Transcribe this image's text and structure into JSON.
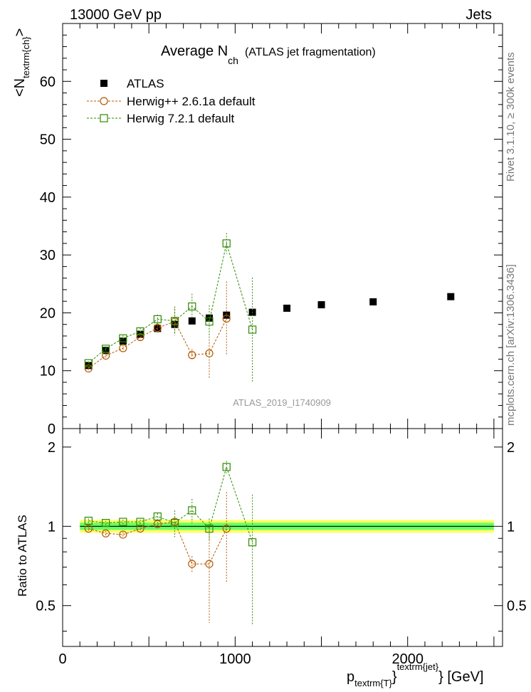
{
  "header": {
    "beam": "13000 GeV pp",
    "tag": "Jets"
  },
  "side_notes": {
    "rivet": "Rivet 3.1.10, ≥ 300k events",
    "mcplots": "mcplots.cern.ch [arXiv:1306.3436]"
  },
  "watermark": "ATLAS_2019_I1740909",
  "colors": {
    "atlas": "#000000",
    "herwigpp": "#b35900",
    "herwig7": "#2e8b00",
    "band_yellow": "#ffff66",
    "band_green": "#66ff66"
  },
  "chart_data": [
    {
      "type": "scatter",
      "title_main": "Average N",
      "title_sub": "ch",
      "title_rest": "(ATLAS jet fragmentation)",
      "ylabel_main": "<N",
      "ylabel_sub": "textrm{ch}",
      "ylabel_end": ">",
      "ylim": [
        0,
        70
      ],
      "yticks": [
        0,
        10,
        20,
        30,
        40,
        50,
        60
      ],
      "xlim": [
        0,
        2550
      ],
      "x": [
        150,
        250,
        350,
        450,
        550,
        650,
        750,
        850,
        950,
        1100,
        1300,
        1500,
        1800,
        2250
      ],
      "series": [
        {
          "name": "ATLAS",
          "marker": "filled-square",
          "values": [
            10.9,
            13.5,
            15.1,
            16.3,
            17.3,
            18.0,
            18.6,
            19.1,
            19.6,
            20.1,
            20.8,
            21.4,
            21.9,
            22.8
          ],
          "errors": [
            0,
            0,
            0,
            0,
            0,
            0,
            0,
            0,
            0,
            0,
            0,
            0,
            0,
            0
          ]
        },
        {
          "name": "Herwig++ 2.6.1a default",
          "marker": "open-circle",
          "values": [
            10.4,
            12.6,
            13.9,
            15.8,
            17.4,
            18.5,
            12.7,
            13.0,
            19.0
          ],
          "errors": [
            0.3,
            0.4,
            0.5,
            0.6,
            0.9,
            2.2,
            1.0,
            4.4,
            6.4
          ]
        },
        {
          "name": "Herwig 7.2.1 default",
          "marker": "open-square",
          "values": [
            11.3,
            13.8,
            15.6,
            16.8,
            18.9,
            18.6,
            21.1,
            18.5,
            32.0,
            17.1
          ],
          "errors": [
            0.3,
            0.4,
            0.5,
            0.6,
            0.8,
            2.5,
            2.2,
            2.8,
            1.8,
            9.0
          ]
        }
      ]
    },
    {
      "type": "scatter",
      "ylabel": "Ratio to ATLAS",
      "xlabel_main": "p",
      "xlabel_sub": "textrm{T}",
      "xlabel_sup": "textrm{jet}",
      "xlabel_unit": "[GeV]",
      "ylim": [
        0.35,
        2.35
      ],
      "yticks": [
        0.5,
        1,
        2
      ],
      "ytick_labels": [
        "0.5",
        "1",
        "2"
      ],
      "xlim": [
        0,
        2550
      ],
      "xticks": [
        0,
        1000,
        2000
      ],
      "xtick_labels": [
        "0",
        "1000",
        "2000"
      ],
      "band": {
        "x_range": [
          100,
          2500
        ],
        "value": 1.0
      },
      "series": [
        {
          "name": "Herwig++ 2.6.1a default",
          "values": [
            0.98,
            0.94,
            0.93,
            0.98,
            1.02,
            1.04,
            0.72,
            0.72,
            0.98
          ],
          "errors": [
            0.02,
            0.02,
            0.02,
            0.02,
            0.02,
            0.03,
            0.05,
            0.29,
            0.37
          ]
        },
        {
          "name": "Herwig 7.2.1 default",
          "values": [
            1.05,
            1.03,
            1.04,
            1.04,
            1.09,
            1.03,
            1.15,
            0.98,
            1.68,
            0.87
          ],
          "errors": [
            0.02,
            0.02,
            0.02,
            0.02,
            0.03,
            0.12,
            0.12,
            0.09,
            0.09,
            0.45
          ]
        }
      ]
    }
  ]
}
